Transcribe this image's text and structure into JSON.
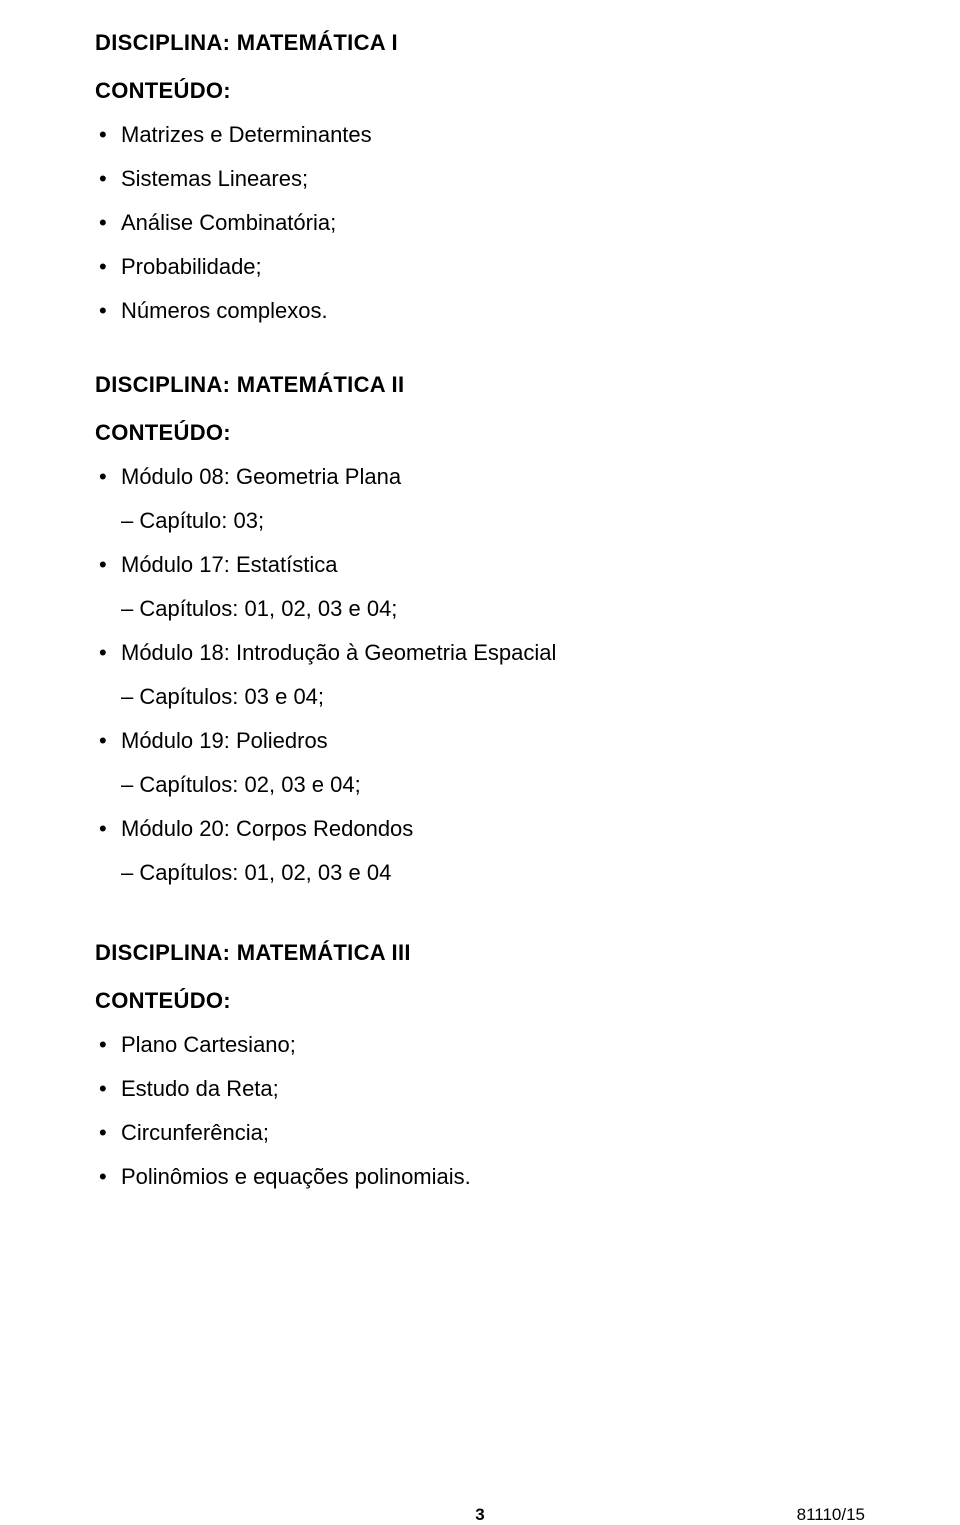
{
  "section1": {
    "title": "DISCIPLINA: MATEMÁTICA I",
    "subtitle": "CONTEÚDO:",
    "items": [
      "Matrizes e Determinantes",
      "Sistemas Lineares;",
      "Análise Combinatória;",
      "Probabilidade;",
      "Números complexos."
    ]
  },
  "section2": {
    "title": "DISCIPLINA: MATEMÁTICA II",
    "subtitle": "CONTEÚDO:",
    "modules": [
      {
        "bullet": "Módulo 08: Geometria Plana",
        "sub": "– Capítulo: 03;"
      },
      {
        "bullet": "Módulo 17: Estatística",
        "sub": "– Capítulos: 01, 02, 03 e 04;"
      },
      {
        "bullet": "Módulo 18: Introdução à Geometria Espacial",
        "sub": "– Capítulos: 03 e 04;"
      },
      {
        "bullet": "Módulo 19: Poliedros",
        "sub": "– Capítulos: 02, 03 e 04;"
      },
      {
        "bullet": "Módulo 20: Corpos Redondos",
        "sub": "– Capítulos: 01, 02, 03 e 04"
      }
    ]
  },
  "section3": {
    "title": "DISCIPLINA: MATEMÁTICA III",
    "subtitle": "CONTEÚDO:",
    "items": [
      "Plano Cartesiano;",
      "Estudo da Reta;",
      "Circunferência;",
      "Polinômios e equações polinomiais."
    ]
  },
  "footer": {
    "page": "3",
    "code": "81110/15"
  },
  "style": {
    "background_color": "#ffffff",
    "text_color": "#000000",
    "font_family": "Arial",
    "body_fontsize": 22,
    "footer_fontsize": 17,
    "heading_weight": "bold"
  }
}
